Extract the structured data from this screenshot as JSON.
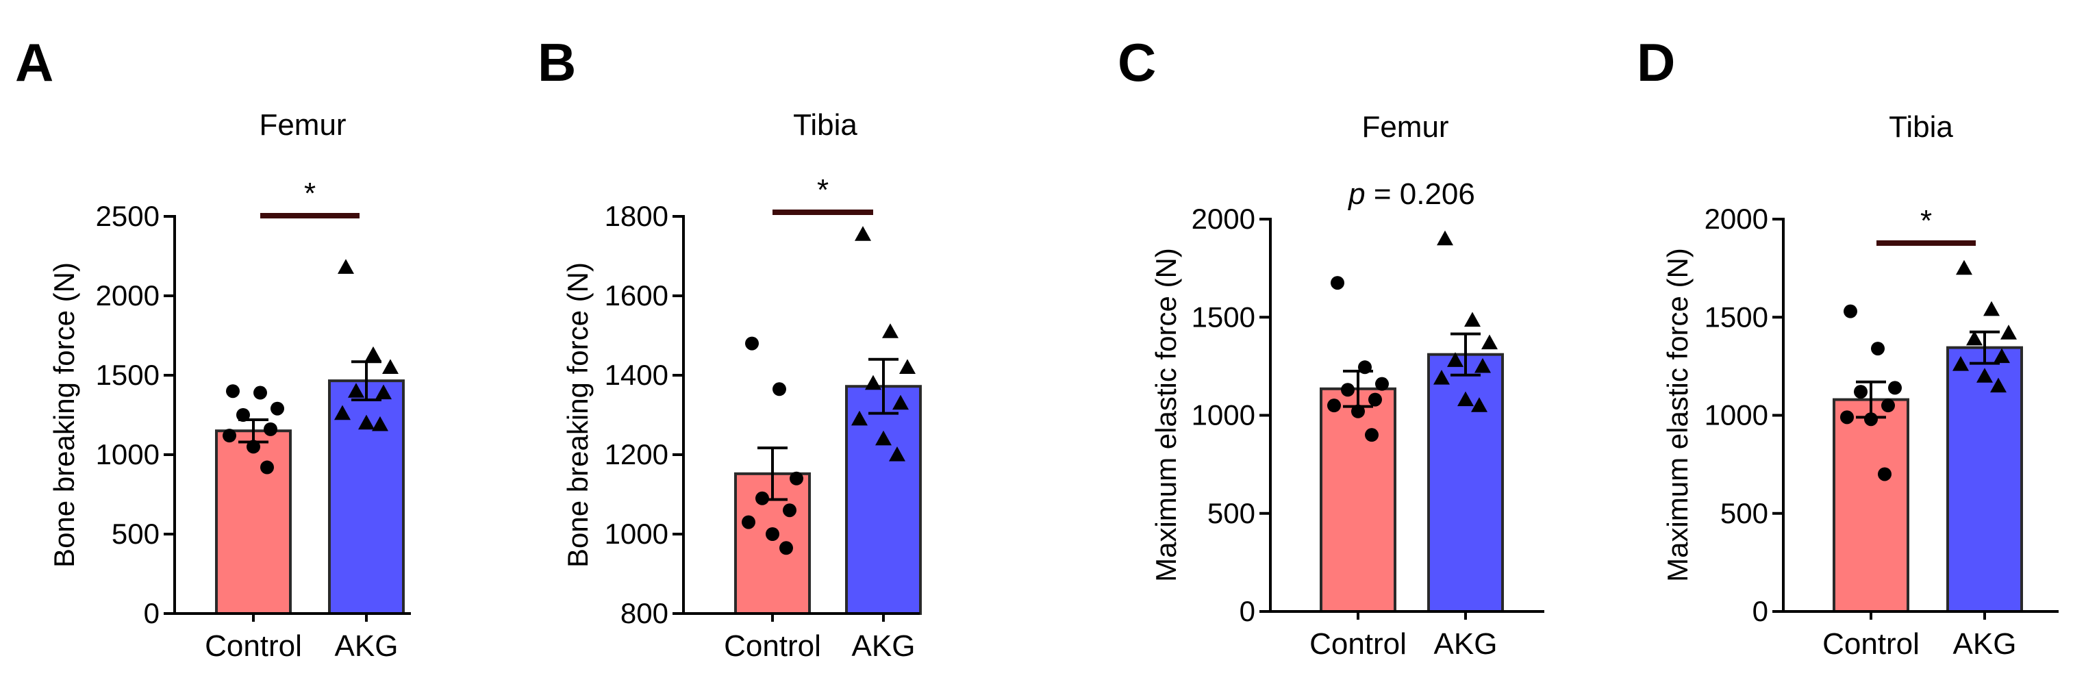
{
  "colors": {
    "control": "#ff7b7b",
    "akg": "#5555ff",
    "bar_stroke": "#2a2a2a",
    "sig_line": "#3d0b0b"
  },
  "chart_data": [
    {
      "type": "bar",
      "panel": "A",
      "title": "Femur",
      "ylabel": "Bone breaking force (N)",
      "xlabel": "",
      "ylim": [
        0,
        2500
      ],
      "yticks": [
        0,
        500,
        1000,
        1500,
        2000,
        2500
      ],
      "categories": [
        "Control",
        "AKG"
      ],
      "values": [
        1150,
        1465
      ],
      "sem": [
        70,
        120
      ],
      "points": [
        [
          1400,
          1390,
          1290,
          1250,
          1160,
          1120,
          1050,
          920
        ],
        [
          2180,
          1630,
          1550,
          1400,
          1390,
          1260,
          1200,
          1190
        ]
      ],
      "significance": "*"
    },
    {
      "type": "bar",
      "panel": "B",
      "title": "Tibia",
      "ylabel": "Bone breaking force (N)",
      "xlabel": "",
      "ylim": [
        800,
        1800
      ],
      "yticks": [
        800,
        1000,
        1200,
        1400,
        1600,
        1800
      ],
      "categories": [
        "Control",
        "AKG"
      ],
      "values": [
        1152,
        1372
      ],
      "sem": [
        65,
        68
      ],
      "points": [
        [
          1480,
          1365,
          1140,
          1090,
          1060,
          1030,
          1000,
          965
        ],
        [
          1755,
          1510,
          1420,
          1380,
          1330,
          1290,
          1240,
          1200
        ]
      ],
      "significance": "*"
    },
    {
      "type": "bar",
      "panel": "C",
      "title": "Femur",
      "ylabel": "Maximum elastic force (N)",
      "xlabel": "",
      "ylim": [
        0,
        2000
      ],
      "yticks": [
        0,
        500,
        1000,
        1500,
        2000
      ],
      "categories": [
        "Control",
        "AKG"
      ],
      "values": [
        1135,
        1310
      ],
      "sem": [
        90,
        105
      ],
      "points": [
        [
          1675,
          1245,
          1160,
          1130,
          1080,
          1050,
          1020,
          900
        ],
        [
          1900,
          1485,
          1370,
          1280,
          1250,
          1190,
          1080,
          1050
        ]
      ],
      "significance": "p = 0.206",
      "significance_prefix": "p",
      "significance_suffix": " = 0.206"
    },
    {
      "type": "bar",
      "panel": "D",
      "title": "Tibia",
      "ylabel": "Maximum elastic force (N)",
      "xlabel": "",
      "ylim": [
        0,
        2000
      ],
      "yticks": [
        0,
        500,
        1000,
        1500,
        2000
      ],
      "categories": [
        "Control",
        "AKG"
      ],
      "values": [
        1080,
        1345
      ],
      "sem": [
        90,
        80
      ],
      "points": [
        [
          1530,
          1340,
          1140,
          1120,
          1050,
          990,
          980,
          700
        ],
        [
          1750,
          1540,
          1420,
          1390,
          1300,
          1260,
          1200,
          1150
        ]
      ],
      "significance": "*"
    }
  ]
}
